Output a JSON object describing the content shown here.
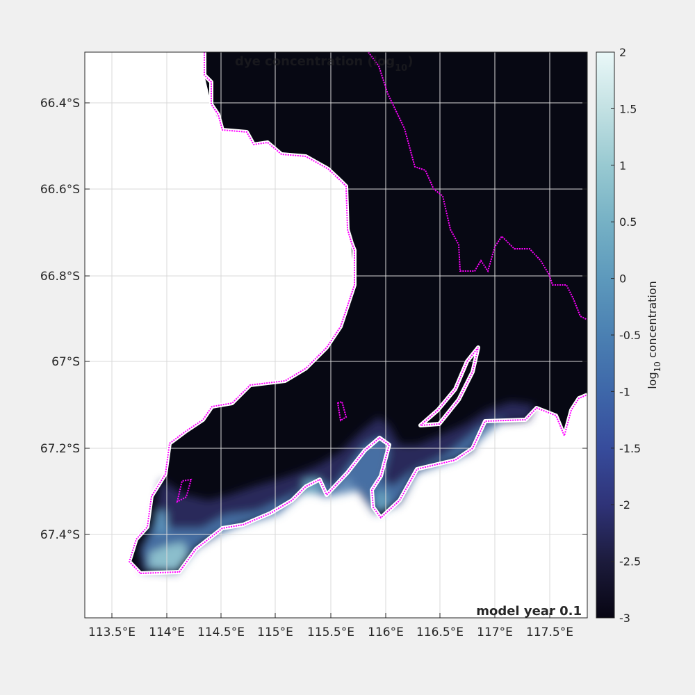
{
  "chart_data": {
    "type": "heatmap",
    "title": "dye concentration (log",
    "title_sub": "10",
    "title_end": ")",
    "annotation": "model year 0.1",
    "x_ticks": [
      "113.5°E",
      "114°E",
      "114.5°E",
      "115°E",
      "115.5°E",
      "116°E",
      "116.5°E",
      "117°E",
      "117.5°E"
    ],
    "x_values": [
      113.5,
      114,
      114.5,
      115,
      115.5,
      116,
      116.5,
      117,
      117.5
    ],
    "y_ticks": [
      "66.4°S",
      "66.6°S",
      "66.8°S",
      "67°S",
      "67.2°S",
      "67.4°S"
    ],
    "y_values": [
      -66.4,
      -66.6,
      -66.8,
      -67.0,
      -67.2,
      -67.4
    ],
    "xlim": [
      113.2,
      117.95
    ],
    "ylim": [
      -67.6,
      -66.28
    ],
    "grid": true,
    "colorbar": {
      "label_pre": "log",
      "label_sub": "10",
      "label_post": " concentration",
      "ticks": [
        "2",
        "1.5",
        "1",
        "0.5",
        "0",
        "-0.5",
        "-1",
        "-1.5",
        "-2",
        "-2.5",
        "-3"
      ],
      "tick_values": [
        2,
        1.5,
        1,
        0.5,
        0,
        -0.5,
        -1,
        -1.5,
        -2,
        -2.5,
        -3
      ],
      "range": [
        -3,
        2
      ],
      "colors": [
        "#070512",
        "#1c1b3c",
        "#2f3378",
        "#374c9c",
        "#3e67a9",
        "#4b80b2",
        "#5d99bc",
        "#76b1c5",
        "#98c9d1",
        "#c3e1e3",
        "#eaf8f8"
      ]
    },
    "colors": {
      "ocean_background": "#070813",
      "land": "#ffffff",
      "coastline": "#ff00ff"
    }
  }
}
